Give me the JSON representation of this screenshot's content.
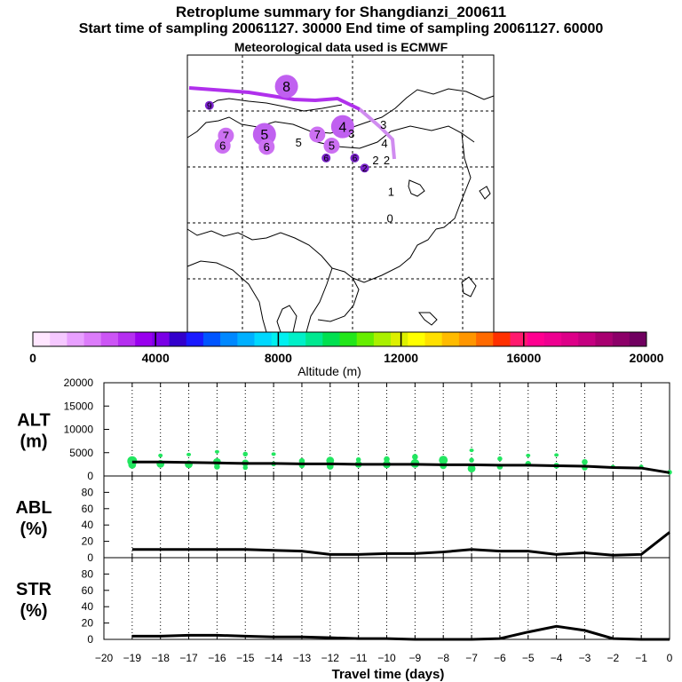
{
  "header": {
    "title": "Retroplume summary for Shangdianzi_200611",
    "line2": "Start time of sampling 20061127. 30000     End time of sampling 20061127. 60000",
    "line3": "Meteorological data used is ECMWF"
  },
  "colorbar": {
    "label": "Altitude (m)",
    "ticks": [
      "0",
      "4000",
      "8000",
      "12000",
      "16000",
      "20000"
    ],
    "colors": [
      "#ffe6ff",
      "#f5c8ff",
      "#e8a0ff",
      "#dc7cfa",
      "#cc55f5",
      "#b52ff0",
      "#9900ee",
      "#7a00e6",
      "#3300cc",
      "#1a1aff",
      "#0055ff",
      "#0088ff",
      "#00b0ff",
      "#00d8ff",
      "#00f0f0",
      "#00f0c8",
      "#00e890",
      "#00e050",
      "#22e61a",
      "#66ee00",
      "#aaf000",
      "#ddf000",
      "#ffff00",
      "#ffe000",
      "#ffbb00",
      "#ff9600",
      "#ff6a00",
      "#ff3000",
      "#ff1a6e",
      "#ff0090",
      "#ee0090",
      "#dd0088",
      "#c40080",
      "#a80070",
      "#8c0068",
      "#700060"
    ]
  },
  "map_labels": [
    {
      "text": "8",
      "lon": 109.0,
      "lat": 52.2,
      "size": "big"
    },
    {
      "text": "9",
      "lon": 102.0,
      "lat": 50.5,
      "size": "small"
    },
    {
      "text": "7",
      "lon": 103.5,
      "lat": 47.8,
      "size": "mid"
    },
    {
      "text": "6",
      "lon": 103.2,
      "lat": 46.9,
      "size": "mid"
    },
    {
      "text": "5",
      "lon": 107.0,
      "lat": 47.9,
      "size": "big"
    },
    {
      "text": "6",
      "lon": 107.2,
      "lat": 46.8,
      "size": "mid"
    },
    {
      "text": "5",
      "lon": 110.1,
      "lat": 47.2,
      "size": "plain"
    },
    {
      "text": "7",
      "lon": 111.8,
      "lat": 47.9,
      "size": "mid"
    },
    {
      "text": "4",
      "lon": 114.1,
      "lat": 48.6,
      "size": "big"
    },
    {
      "text": "3",
      "lon": 114.9,
      "lat": 48.0,
      "size": "plain"
    },
    {
      "text": "5",
      "lon": 113.1,
      "lat": 46.9,
      "size": "mid"
    },
    {
      "text": "6",
      "lon": 112.6,
      "lat": 45.8,
      "size": "small"
    },
    {
      "text": "6",
      "lon": 115.2,
      "lat": 45.8,
      "size": "small"
    },
    {
      "text": "3",
      "lon": 117.8,
      "lat": 48.8,
      "size": "plain"
    },
    {
      "text": "4",
      "lon": 117.9,
      "lat": 47.1,
      "size": "plain"
    },
    {
      "text": "2",
      "lon": 117.1,
      "lat": 45.6,
      "size": "plain"
    },
    {
      "text": "2",
      "lon": 118.1,
      "lat": 45.6,
      "size": "plain"
    },
    {
      "text": "2",
      "lon": 116.1,
      "lat": 44.9,
      "size": "small"
    },
    {
      "text": "1",
      "lon": 118.5,
      "lat": 42.8,
      "size": "plain"
    },
    {
      "text": "0",
      "lon": 118.4,
      "lat": 40.4,
      "size": "plain"
    }
  ],
  "chart_data": [
    {
      "type": "line",
      "id": "ALT",
      "ylabel": "ALT\n(m)",
      "ylim": [
        0,
        20000
      ],
      "yticks": [
        0,
        5000,
        10000,
        15000,
        20000
      ],
      "xlim": [
        -20,
        0
      ],
      "x": [
        -19,
        -18,
        -17,
        -16,
        -15,
        -14,
        -13,
        -12,
        -11,
        -10,
        -9,
        -8,
        -7,
        -6,
        -5,
        -4,
        -3,
        -2,
        -1,
        0
      ],
      "values": [
        3000,
        3000,
        2900,
        2800,
        2700,
        2700,
        2600,
        2600,
        2500,
        2500,
        2500,
        2400,
        2400,
        2300,
        2300,
        2200,
        2100,
        1800,
        1700,
        700
      ],
      "scatter": [
        {
          "x": -19,
          "y": 3200,
          "s": 10
        },
        {
          "x": -19,
          "y": 2400,
          "s": 8
        },
        {
          "x": -18,
          "y": 4400,
          "s": 4
        },
        {
          "x": -18,
          "y": 2600,
          "s": 8
        },
        {
          "x": -17,
          "y": 4600,
          "s": 3
        },
        {
          "x": -17,
          "y": 2500,
          "s": 8
        },
        {
          "x": -16,
          "y": 5200,
          "s": 3
        },
        {
          "x": -16,
          "y": 3000,
          "s": 8
        },
        {
          "x": -16,
          "y": 2000,
          "s": 6
        },
        {
          "x": -15,
          "y": 4700,
          "s": 5
        },
        {
          "x": -15,
          "y": 2800,
          "s": 7
        },
        {
          "x": -15,
          "y": 1800,
          "s": 5
        },
        {
          "x": -14,
          "y": 4700,
          "s": 3
        },
        {
          "x": -14,
          "y": 2600,
          "s": 5
        },
        {
          "x": -13,
          "y": 3200,
          "s": 6
        },
        {
          "x": -13,
          "y": 2300,
          "s": 6
        },
        {
          "x": -12,
          "y": 3300,
          "s": 8
        },
        {
          "x": -12,
          "y": 2100,
          "s": 7
        },
        {
          "x": -11,
          "y": 3500,
          "s": 5
        },
        {
          "x": -11,
          "y": 2500,
          "s": 7
        },
        {
          "x": -10,
          "y": 3600,
          "s": 6
        },
        {
          "x": -10,
          "y": 2500,
          "s": 8
        },
        {
          "x": -9,
          "y": 4100,
          "s": 6
        },
        {
          "x": -9,
          "y": 2700,
          "s": 9
        },
        {
          "x": -8,
          "y": 3400,
          "s": 9
        },
        {
          "x": -8,
          "y": 2200,
          "s": 7
        },
        {
          "x": -7,
          "y": 5500,
          "s": 3
        },
        {
          "x": -7,
          "y": 3400,
          "s": 5
        },
        {
          "x": -7,
          "y": 1600,
          "s": 8
        },
        {
          "x": -6,
          "y": 3700,
          "s": 5
        },
        {
          "x": -6,
          "y": 2000,
          "s": 6
        },
        {
          "x": -5,
          "y": 4400,
          "s": 3
        },
        {
          "x": -5,
          "y": 2600,
          "s": 6
        },
        {
          "x": -4,
          "y": 4500,
          "s": 3
        },
        {
          "x": -4,
          "y": 2200,
          "s": 6
        },
        {
          "x": -3,
          "y": 3000,
          "s": 6
        },
        {
          "x": -3,
          "y": 1800,
          "s": 6
        },
        {
          "x": -2,
          "y": 2000,
          "s": 3
        },
        {
          "x": -1,
          "y": 2000,
          "s": 4
        },
        {
          "x": 0,
          "y": 800,
          "s": 5
        }
      ]
    },
    {
      "type": "line",
      "id": "ABL",
      "ylabel": "ABL\n(%)",
      "ylim": [
        0,
        100
      ],
      "yticks": [
        0,
        20,
        40,
        60,
        80
      ],
      "xlim": [
        -20,
        0
      ],
      "x": [
        -19,
        -18,
        -17,
        -16,
        -15,
        -14,
        -13,
        -12,
        -11,
        -10,
        -9,
        -8,
        -7,
        -6,
        -5,
        -4,
        -3,
        -2,
        -1,
        0
      ],
      "values": [
        10,
        10,
        10,
        10,
        10,
        9,
        8,
        4,
        4,
        5,
        5,
        7,
        10,
        8,
        8,
        4,
        6,
        3,
        4,
        31
      ]
    },
    {
      "type": "line",
      "id": "STR",
      "ylabel": "STR\n(%)",
      "ylim": [
        0,
        100
      ],
      "yticks": [
        0,
        20,
        40,
        60,
        80
      ],
      "xlim": [
        -20,
        0
      ],
      "xlabel": "Travel time (days)",
      "xticks": [
        -20,
        -19,
        -18,
        -17,
        -16,
        -15,
        -14,
        -13,
        -12,
        -11,
        -10,
        -9,
        -8,
        -7,
        -6,
        -5,
        -4,
        -3,
        -2,
        -1,
        0
      ],
      "x": [
        -19,
        -18,
        -17,
        -16,
        -15,
        -14,
        -13,
        -12,
        -11,
        -10,
        -9,
        -8,
        -7,
        -6,
        -5,
        -4,
        -3,
        -2,
        -1,
        0
      ],
      "values": [
        4,
        4,
        5,
        5,
        4,
        3,
        3,
        2,
        1,
        1,
        0,
        0,
        0,
        1,
        9,
        16,
        11,
        1,
        0,
        0
      ]
    }
  ]
}
